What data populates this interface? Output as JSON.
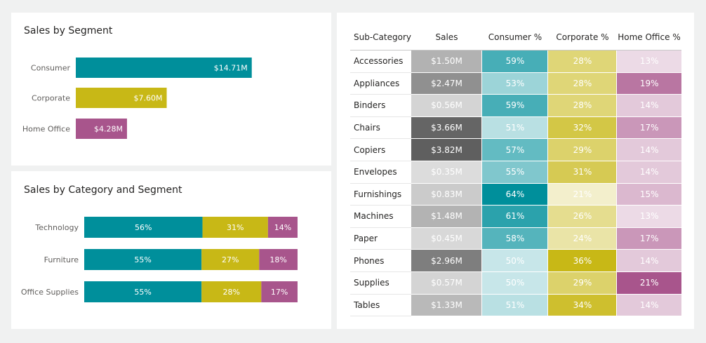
{
  "segment_card": {
    "title": "Sales by Segment"
  },
  "category_card": {
    "title": "Sales by Category and Segment"
  },
  "colors": {
    "consumer": "#008f9b",
    "corporate": "#c8b816",
    "home_office": "#a8558c",
    "sales": "#5f5f5f"
  },
  "chart_data": [
    {
      "type": "bar",
      "orientation": "horizontal",
      "title": "Sales by Segment",
      "categories": [
        "Consumer",
        "Corporate",
        "Home Office"
      ],
      "values": [
        14.71,
        7.6,
        4.28
      ],
      "value_labels": [
        "$14.71M",
        "$7.60M",
        "$4.28M"
      ],
      "unit": "$M",
      "xlim": [
        0,
        17.6
      ]
    },
    {
      "type": "bar",
      "orientation": "horizontal",
      "stacked": "100%",
      "title": "Sales by Category and Segment",
      "categories": [
        "Technology",
        "Furniture",
        "Office Supplies"
      ],
      "series": [
        {
          "values": [
            56,
            55,
            55
          ],
          "labels": [
            "56%",
            "55%",
            "55%"
          ]
        },
        {
          "values": [
            31,
            27,
            28
          ],
          "labels": [
            "31%",
            "27%",
            "28%"
          ]
        },
        {
          "values": [
            14,
            18,
            17
          ],
          "labels": [
            "14%",
            "18%",
            "17%"
          ]
        }
      ]
    },
    {
      "type": "table",
      "columns": [
        "Sub-Category",
        "Sales",
        "Consumer %",
        "Corporate %",
        "Home Office %"
      ],
      "rows": [
        {
          "name": "Accessories",
          "sales": 1.5,
          "sales_label": "$1.50M",
          "consumer": 59,
          "corporate": 28,
          "home_office": 13
        },
        {
          "name": "Appliances",
          "sales": 2.47,
          "sales_label": "$2.47M",
          "consumer": 53,
          "corporate": 28,
          "home_office": 19
        },
        {
          "name": "Binders",
          "sales": 0.56,
          "sales_label": "$0.56M",
          "consumer": 59,
          "corporate": 28,
          "home_office": 14
        },
        {
          "name": "Chairs",
          "sales": 3.66,
          "sales_label": "$3.66M",
          "consumer": 51,
          "corporate": 32,
          "home_office": 17
        },
        {
          "name": "Copiers",
          "sales": 3.82,
          "sales_label": "$3.82M",
          "consumer": 57,
          "corporate": 29,
          "home_office": 14
        },
        {
          "name": "Envelopes",
          "sales": 0.35,
          "sales_label": "$0.35M",
          "consumer": 55,
          "corporate": 31,
          "home_office": 14
        },
        {
          "name": "Furnishings",
          "sales": 0.83,
          "sales_label": "$0.83M",
          "consumer": 64,
          "corporate": 21,
          "home_office": 15
        },
        {
          "name": "Machines",
          "sales": 1.48,
          "sales_label": "$1.48M",
          "consumer": 61,
          "corporate": 26,
          "home_office": 13
        },
        {
          "name": "Paper",
          "sales": 0.45,
          "sales_label": "$0.45M",
          "consumer": 58,
          "corporate": 24,
          "home_office": 17
        },
        {
          "name": "Phones",
          "sales": 2.96,
          "sales_label": "$2.96M",
          "consumer": 50,
          "corporate": 36,
          "home_office": 14
        },
        {
          "name": "Supplies",
          "sales": 0.57,
          "sales_label": "$0.57M",
          "consumer": 50,
          "corporate": 29,
          "home_office": 21
        },
        {
          "name": "Tables",
          "sales": 1.33,
          "sales_label": "$1.33M",
          "consumer": 51,
          "corporate": 34,
          "home_office": 14
        }
      ]
    }
  ]
}
